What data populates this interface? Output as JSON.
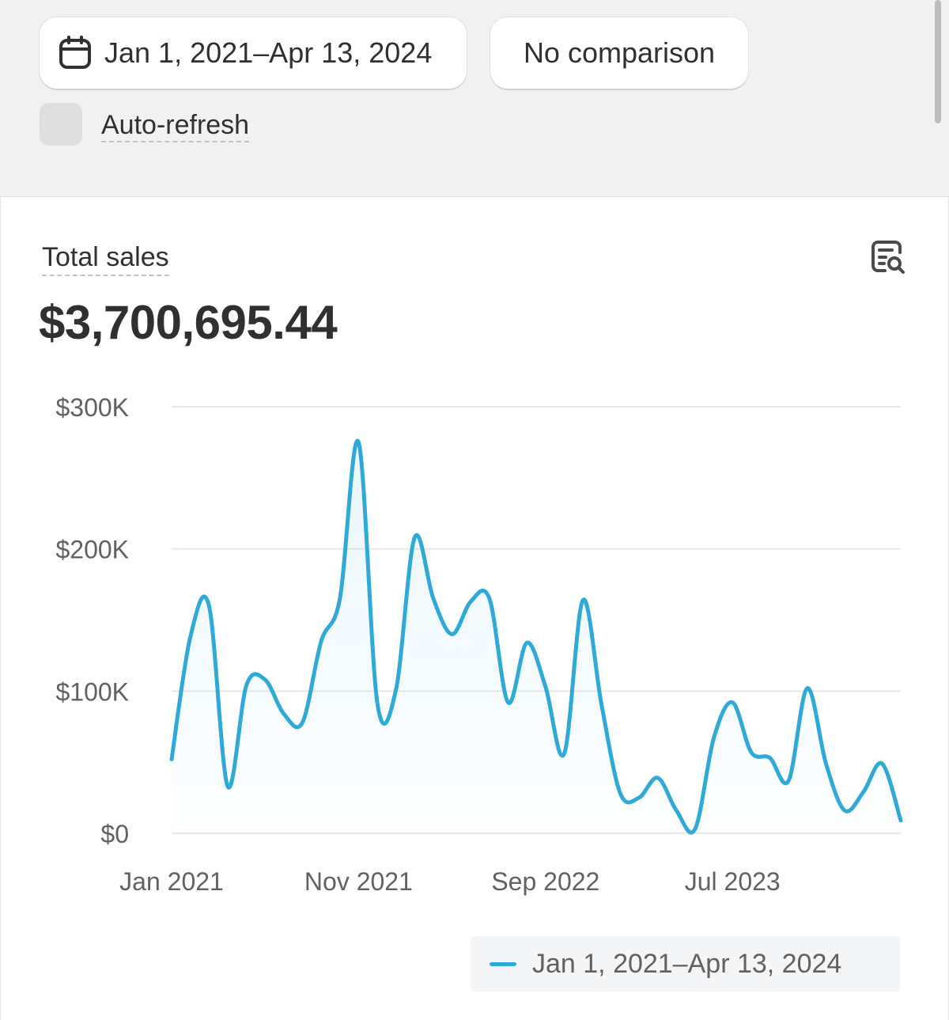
{
  "header": {
    "date_range_label": "Jan 1, 2021–Apr 13, 2024",
    "comparison_label": "No comparison",
    "auto_refresh_label": "Auto-refresh",
    "auto_refresh_checked": false
  },
  "metric": {
    "title": "Total sales",
    "value": "$3,700,695.44"
  },
  "icons": {
    "date_picker": "calendar-icon",
    "explore": "explore-report-icon"
  },
  "colors": {
    "series": "#2fa9d8",
    "grid": "#e8e8e8",
    "axis_text": "#616161"
  },
  "chart_data": {
    "type": "line",
    "title": "Total sales",
    "xlabel": "",
    "ylabel": "",
    "ylim": [
      0,
      300000
    ],
    "yticks": [
      0,
      100000,
      200000,
      300000
    ],
    "ytick_labels": [
      "$0",
      "$100K",
      "$200K",
      "$300K"
    ],
    "xtick_labels": [
      "Jan 2021",
      "Nov 2021",
      "Sep 2022",
      "Jul 2023"
    ],
    "grid": true,
    "area_fill": true,
    "legend_position": "bottom-right",
    "series": [
      {
        "name": "Jan 1, 2021–Apr 13, 2024",
        "x": [
          "Jan 2021",
          "Feb 2021",
          "Mar 2021",
          "Apr 2021",
          "May 2021",
          "Jun 2021",
          "Jul 2021",
          "Aug 2021",
          "Sep 2021",
          "Oct 2021",
          "Nov 2021",
          "Dec 2021",
          "Jan 2022",
          "Feb 2022",
          "Mar 2022",
          "Apr 2022",
          "May 2022",
          "Jun 2022",
          "Jul 2022",
          "Aug 2022",
          "Sep 2022",
          "Oct 2022",
          "Nov 2022",
          "Dec 2022",
          "Jan 2023",
          "Feb 2023",
          "Mar 2023",
          "Apr 2023",
          "May 2023",
          "Jun 2023",
          "Jul 2023",
          "Aug 2023",
          "Sep 2023",
          "Oct 2023",
          "Nov 2023",
          "Dec 2023",
          "Jan 2024",
          "Feb 2024",
          "Mar 2024",
          "Apr 2024"
        ],
        "values": [
          52000,
          138000,
          160000,
          33000,
          104000,
          108000,
          84000,
          78000,
          135000,
          165000,
          275000,
          92000,
          101000,
          208000,
          165000,
          140000,
          163000,
          165000,
          92000,
          134000,
          103000,
          56000,
          164000,
          90000,
          28000,
          25000,
          39000,
          16000,
          3000,
          67000,
          92000,
          57000,
          53000,
          37000,
          102000,
          49000,
          16000,
          29000,
          49000,
          9000
        ]
      }
    ]
  }
}
